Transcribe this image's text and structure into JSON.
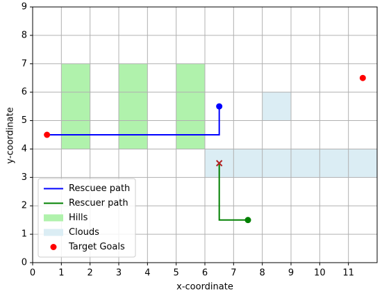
{
  "chart_data": {
    "type": "line",
    "xlabel": "x-coordinate",
    "ylabel": "y-coordinate",
    "xlim": [
      0,
      12
    ],
    "ylim": [
      0,
      9
    ],
    "xticks": [
      0,
      1,
      2,
      3,
      4,
      5,
      6,
      7,
      8,
      9,
      10,
      11
    ],
    "yticks": [
      0,
      1,
      2,
      3,
      4,
      5,
      6,
      7,
      8,
      9
    ],
    "grid": true,
    "legend": "lower left",
    "series": [
      {
        "name": "Rescuee path",
        "color": "#0000ff",
        "x": [
          0.5,
          6.5,
          6.5
        ],
        "y": [
          4.5,
          4.5,
          5.5
        ]
      },
      {
        "name": "Rescuer path",
        "color": "#008000",
        "x": [
          7.5,
          6.5,
          6.5
        ],
        "y": [
          1.5,
          1.5,
          3.5
        ]
      }
    ],
    "regions": [
      {
        "name": "Hills",
        "color": "#b0f2ac",
        "rects": [
          {
            "x": [
              1,
              2
            ],
            "y": [
              4,
              7
            ]
          },
          {
            "x": [
              3,
              4
            ],
            "y": [
              4,
              7
            ]
          },
          {
            "x": [
              5,
              6
            ],
            "y": [
              4,
              7
            ]
          }
        ]
      },
      {
        "name": "Clouds",
        "color": "#dbedf4",
        "rects": [
          {
            "x": [
              8,
              9
            ],
            "y": [
              5,
              6
            ]
          },
          {
            "x": [
              6,
              12
            ],
            "y": [
              3,
              4
            ]
          }
        ]
      }
    ],
    "points": {
      "name": "Target Goals",
      "color": "#ff0000",
      "x": [
        0.5,
        11.5
      ],
      "y": [
        4.5,
        6.5
      ]
    },
    "markers": [
      {
        "x": 6.5,
        "y": 5.5,
        "color": "#0000ff",
        "shape": "circle"
      },
      {
        "x": 7.5,
        "y": 1.5,
        "color": "#008000",
        "shape": "circle"
      },
      {
        "x": 6.5,
        "y": 3.5,
        "color": "#b22222",
        "shape": "x"
      }
    ]
  }
}
